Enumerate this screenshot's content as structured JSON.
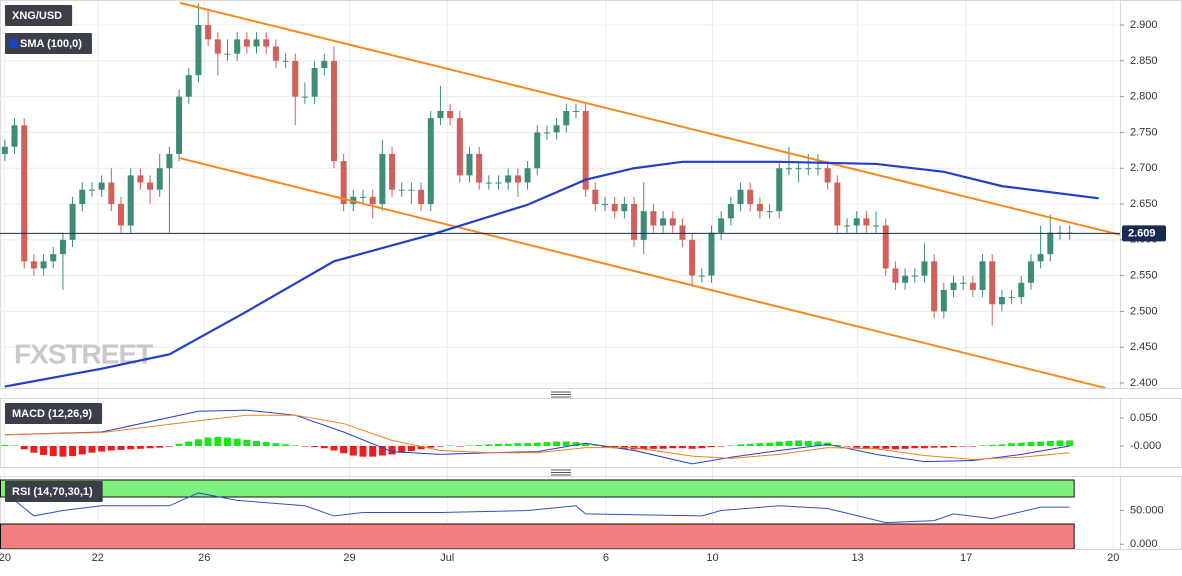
{
  "chart_data": [
    {
      "type": "candlestick",
      "title": "XNG/USD",
      "watermark": "FXSTREET",
      "up_color": "#3d8c78",
      "down_color": "#d0605a",
      "x": [
        0,
        1,
        2,
        3,
        4,
        5,
        6,
        7,
        8,
        9,
        10,
        11,
        12,
        13,
        14,
        15,
        16,
        17,
        18,
        19,
        20,
        21,
        22,
        23,
        24,
        25,
        26,
        27,
        28,
        29,
        30,
        31,
        32,
        33,
        34,
        35,
        36,
        37,
        38,
        39,
        40,
        41,
        42,
        43,
        44,
        45,
        46,
        47,
        48,
        49,
        50,
        51,
        52,
        53,
        54,
        55,
        56,
        57,
        58,
        59,
        60,
        61,
        62,
        63,
        64,
        65,
        66,
        67,
        68,
        69,
        70,
        71,
        72,
        73,
        74,
        75,
        76,
        77,
        78,
        79,
        80,
        81,
        82,
        83,
        84,
        85,
        86,
        87,
        88,
        89,
        90,
        91,
        92,
        93,
        94,
        95,
        96,
        97,
        98,
        99,
        100,
        101,
        102,
        103,
        104,
        105,
        106,
        107,
        108,
        109,
        110
      ],
      "open": [
        2.72,
        2.73,
        2.76,
        2.57,
        2.56,
        2.57,
        2.58,
        2.6,
        2.65,
        2.67,
        2.67,
        2.68,
        2.65,
        2.62,
        2.69,
        2.68,
        2.67,
        2.7,
        2.72,
        2.8,
        2.83,
        2.9,
        2.88,
        2.86,
        2.86,
        2.88,
        2.87,
        2.88,
        2.87,
        2.85,
        2.85,
        2.8,
        2.8,
        2.84,
        2.85,
        2.71,
        2.65,
        2.66,
        2.66,
        2.65,
        2.72,
        2.67,
        2.67,
        2.67,
        2.65,
        2.77,
        2.78,
        2.77,
        2.69,
        2.72,
        2.68,
        2.68,
        2.68,
        2.69,
        2.68,
        2.7,
        2.75,
        2.75,
        2.76,
        2.78,
        2.78,
        2.67,
        2.65,
        2.65,
        2.64,
        2.65,
        2.6,
        2.64,
        2.62,
        2.63,
        2.62,
        2.6,
        2.55,
        2.55,
        2.61,
        2.63,
        2.65,
        2.67,
        2.65,
        2.64,
        2.64,
        2.7,
        2.7,
        2.7,
        2.7,
        2.7,
        2.68,
        2.62,
        2.62,
        2.63,
        2.62,
        2.62,
        2.56,
        2.54,
        2.55,
        2.55,
        2.57,
        2.5,
        2.53,
        2.54,
        2.54,
        2.53,
        2.57,
        2.51,
        2.52,
        2.52,
        2.54,
        2.57,
        2.58,
        2.61,
        2.61
      ],
      "high": [
        2.74,
        2.77,
        2.77,
        2.58,
        2.58,
        2.59,
        2.61,
        2.66,
        2.68,
        2.68,
        2.69,
        2.7,
        2.66,
        2.7,
        2.7,
        2.69,
        2.72,
        2.73,
        2.81,
        2.84,
        2.93,
        2.92,
        2.89,
        2.88,
        2.89,
        2.89,
        2.89,
        2.89,
        2.88,
        2.86,
        2.86,
        2.82,
        2.85,
        2.86,
        2.87,
        2.72,
        2.67,
        2.67,
        2.67,
        2.74,
        2.73,
        2.68,
        2.68,
        2.68,
        2.78,
        2.815,
        2.79,
        2.78,
        2.73,
        2.73,
        2.69,
        2.69,
        2.7,
        2.7,
        2.71,
        2.76,
        2.76,
        2.77,
        2.79,
        2.79,
        2.79,
        2.68,
        2.66,
        2.66,
        2.66,
        2.66,
        2.68,
        2.65,
        2.64,
        2.64,
        2.63,
        2.61,
        2.56,
        2.62,
        2.64,
        2.66,
        2.68,
        2.68,
        2.66,
        2.65,
        2.71,
        2.73,
        2.71,
        2.72,
        2.72,
        2.71,
        2.69,
        2.63,
        2.64,
        2.64,
        2.64,
        2.63,
        2.57,
        2.56,
        2.56,
        2.595,
        2.58,
        2.54,
        2.55,
        2.55,
        2.55,
        2.58,
        2.58,
        2.53,
        2.53,
        2.55,
        2.58,
        2.62,
        2.635,
        2.62,
        2.62
      ],
      "low": [
        2.71,
        2.72,
        2.56,
        2.55,
        2.55,
        2.56,
        2.53,
        2.59,
        2.64,
        2.66,
        2.66,
        2.64,
        2.61,
        2.61,
        2.67,
        2.65,
        2.66,
        2.61,
        2.71,
        2.79,
        2.82,
        2.87,
        2.83,
        2.85,
        2.85,
        2.86,
        2.86,
        2.86,
        2.84,
        2.84,
        2.76,
        2.79,
        2.79,
        2.83,
        2.7,
        2.64,
        2.64,
        2.65,
        2.63,
        2.64,
        2.66,
        2.66,
        2.65,
        2.64,
        2.64,
        2.76,
        2.76,
        2.68,
        2.68,
        2.67,
        2.67,
        2.67,
        2.67,
        2.66,
        2.67,
        2.69,
        2.74,
        2.74,
        2.75,
        2.77,
        2.66,
        2.64,
        2.64,
        2.63,
        2.63,
        2.59,
        2.58,
        2.61,
        2.61,
        2.61,
        2.59,
        2.535,
        2.54,
        2.54,
        2.6,
        2.62,
        2.64,
        2.64,
        2.63,
        2.63,
        2.63,
        2.69,
        2.68,
        2.69,
        2.69,
        2.67,
        2.61,
        2.61,
        2.61,
        2.61,
        2.61,
        2.55,
        2.53,
        2.53,
        2.54,
        2.54,
        2.49,
        2.49,
        2.52,
        2.53,
        2.52,
        2.52,
        2.48,
        2.5,
        2.51,
        2.51,
        2.53,
        2.56,
        2.57,
        2.6,
        2.6
      ],
      "close": [
        2.73,
        2.76,
        2.57,
        2.56,
        2.57,
        2.58,
        2.6,
        2.65,
        2.67,
        2.67,
        2.68,
        2.65,
        2.62,
        2.69,
        2.68,
        2.67,
        2.7,
        2.72,
        2.8,
        2.83,
        2.9,
        2.88,
        2.86,
        2.86,
        2.88,
        2.87,
        2.88,
        2.87,
        2.85,
        2.85,
        2.8,
        2.8,
        2.84,
        2.85,
        2.71,
        2.65,
        2.66,
        2.66,
        2.65,
        2.72,
        2.67,
        2.67,
        2.67,
        2.65,
        2.77,
        2.78,
        2.77,
        2.69,
        2.72,
        2.68,
        2.68,
        2.68,
        2.69,
        2.68,
        2.7,
        2.75,
        2.75,
        2.76,
        2.78,
        2.78,
        2.67,
        2.65,
        2.65,
        2.64,
        2.65,
        2.6,
        2.64,
        2.62,
        2.63,
        2.62,
        2.6,
        2.55,
        2.55,
        2.61,
        2.63,
        2.65,
        2.67,
        2.65,
        2.64,
        2.64,
        2.7,
        2.7,
        2.7,
        2.7,
        2.7,
        2.68,
        2.62,
        2.62,
        2.63,
        2.62,
        2.62,
        2.56,
        2.54,
        2.55,
        2.55,
        2.57,
        2.5,
        2.53,
        2.54,
        2.54,
        2.53,
        2.57,
        2.51,
        2.52,
        2.52,
        2.54,
        2.57,
        2.58,
        2.61,
        2.61,
        2.61
      ],
      "series": [
        {
          "name": "SMA (100,0)",
          "color": "#1f3fcc",
          "x": [
            0,
            10,
            17,
            25,
            34,
            44,
            54,
            60,
            65,
            70,
            80,
            90,
            97,
            103,
            113
          ],
          "values": [
            2.395,
            2.42,
            2.44,
            2.5,
            2.57,
            2.607,
            2.649,
            2.684,
            2.7,
            2.709,
            2.709,
            2.706,
            2.695,
            2.675,
            2.658
          ]
        }
      ],
      "trendlines": [
        {
          "color": "#f5891f",
          "x": [
            18.1,
            115.2
          ],
          "values": [
            2.931,
            2.607
          ]
        },
        {
          "color": "#f5891f",
          "x": [
            18.1,
            113.7
          ],
          "values": [
            2.714,
            2.393
          ]
        }
      ],
      "last_price": 2.609,
      "last_price_color": "#1a2a50",
      "xlim": [
        -0.5,
        115.2
      ],
      "ylim": [
        2.393,
        2.935
      ],
      "yticks": [
        {
          "value": 2.9,
          "label": "2.900"
        },
        {
          "value": 2.85,
          "label": "2.850"
        },
        {
          "value": 2.8,
          "label": "2.800"
        },
        {
          "value": 2.75,
          "label": "2.750"
        },
        {
          "value": 2.7,
          "label": "2.700"
        },
        {
          "value": 2.65,
          "label": "2.650"
        },
        {
          "value": 2.6,
          "label": "2.600"
        },
        {
          "value": 2.55,
          "label": "2.550"
        },
        {
          "value": 2.5,
          "label": "2.500"
        },
        {
          "value": 2.45,
          "label": "2.450"
        },
        {
          "value": 2.4,
          "label": "2.400"
        }
      ],
      "grid": true
    },
    {
      "type": "macd",
      "title": "MACD (12,26,9)",
      "positive_color": "#19e619",
      "negative_color": "#ee1c1c",
      "x": [
        0,
        1,
        2,
        3,
        4,
        5,
        6,
        7,
        8,
        9,
        10,
        11,
        12,
        13,
        14,
        15,
        16,
        17,
        18,
        19,
        20,
        21,
        22,
        23,
        24,
        25,
        26,
        27,
        28,
        29,
        30,
        31,
        32,
        33,
        34,
        35,
        36,
        37,
        38,
        39,
        40,
        41,
        42,
        43,
        44,
        45,
        46,
        47,
        48,
        49,
        50,
        51,
        52,
        53,
        54,
        55,
        56,
        57,
        58,
        59,
        60,
        61,
        62,
        63,
        64,
        65,
        66,
        67,
        68,
        69,
        70,
        71,
        72,
        73,
        74,
        75,
        76,
        77,
        78,
        79,
        80,
        81,
        82,
        83,
        84,
        85,
        86,
        87,
        88,
        89,
        90,
        91,
        92,
        93,
        94,
        95,
        96,
        97,
        98,
        99,
        100,
        101,
        102,
        103,
        104,
        105,
        106,
        107,
        108,
        109,
        110
      ],
      "histogram": [
        0.002,
        0.001,
        -0.006,
        -0.012,
        -0.016,
        -0.018,
        -0.019,
        -0.018,
        -0.015,
        -0.012,
        -0.01,
        -0.008,
        -0.007,
        -0.006,
        -0.005,
        -0.004,
        -0.003,
        -0.001,
        0.004,
        0.008,
        0.012,
        0.015,
        0.016,
        0.015,
        0.013,
        0.011,
        0.009,
        0.007,
        0.005,
        0.003,
        0.001,
        -0.001,
        -0.002,
        -0.004,
        -0.008,
        -0.013,
        -0.017,
        -0.019,
        -0.019,
        -0.017,
        -0.015,
        -0.012,
        -0.009,
        -0.006,
        -0.003,
        -0.001,
        0.001,
        -0.001,
        0.001,
        0.002,
        0.003,
        0.004,
        0.004,
        0.005,
        0.005,
        0.006,
        0.007,
        0.008,
        0.008,
        0.007,
        0.004,
        0.001,
        -0.002,
        -0.004,
        -0.005,
        -0.006,
        -0.006,
        -0.005,
        -0.005,
        -0.004,
        -0.004,
        -0.005,
        -0.004,
        -0.002,
        -0.001,
        0.001,
        0.003,
        0.004,
        0.005,
        0.006,
        0.008,
        0.009,
        0.01,
        0.009,
        0.008,
        0.006,
        0.002,
        -0.001,
        -0.003,
        -0.004,
        -0.005,
        -0.005,
        -0.006,
        -0.005,
        -0.004,
        -0.004,
        -0.003,
        -0.003,
        -0.002,
        -0.001,
        -0.001,
        0.001,
        0.002,
        0.003,
        0.005,
        0.006,
        0.007,
        0.008,
        0.009,
        0.01,
        0.01
      ],
      "series": [
        {
          "color": "#2040d0",
          "x": [
            0,
            10,
            20,
            25,
            30,
            35,
            40,
            45,
            50,
            55,
            60,
            65,
            71,
            75,
            80,
            85,
            90,
            95,
            100,
            105,
            110
          ],
          "values": [
            0.02,
            0.025,
            0.062,
            0.064,
            0.055,
            0.025,
            -0.01,
            -0.015,
            -0.012,
            -0.01,
            0.005,
            -0.008,
            -0.032,
            -0.02,
            -0.008,
            0.003,
            -0.015,
            -0.028,
            -0.026,
            -0.015,
            0.0
          ]
        },
        {
          "color": "#f08020",
          "x": [
            0,
            10,
            20,
            25,
            30,
            35,
            40,
            45,
            50,
            55,
            60,
            65,
            71,
            75,
            80,
            85,
            90,
            95,
            100,
            105,
            110
          ],
          "values": [
            0.02,
            0.024,
            0.045,
            0.055,
            0.055,
            0.04,
            0.01,
            -0.008,
            -0.012,
            -0.012,
            -0.003,
            -0.003,
            -0.018,
            -0.022,
            -0.015,
            -0.003,
            -0.005,
            -0.017,
            -0.024,
            -0.02,
            -0.012
          ]
        }
      ],
      "xlim": [
        -0.5,
        115.2
      ],
      "ylim": [
        -0.0375,
        0.0857
      ],
      "yticks": [
        {
          "value": 0.05,
          "label": "0.050"
        },
        {
          "value": 0,
          "label": "-0.000"
        }
      ]
    },
    {
      "type": "rsi",
      "title": "RSI (14,70,30,1)",
      "overbought": 70,
      "oversold": 30,
      "overbought_color": "#7ef07e",
      "oversold_color": "#f47f7f",
      "series": [
        {
          "color": "#3050c8",
          "x": [
            0,
            3,
            6,
            10,
            17,
            20,
            24,
            31,
            34,
            37,
            45,
            54,
            59,
            60,
            72,
            74,
            80,
            85,
            91,
            96,
            98,
            102,
            107,
            110
          ],
          "values": [
            77,
            42,
            50,
            57,
            57,
            76,
            65,
            57,
            42,
            47,
            47,
            50,
            57,
            45,
            42,
            50,
            57,
            53,
            32,
            35,
            45,
            38,
            55,
            55
          ]
        }
      ],
      "xlim": [
        -0.5,
        115.2
      ],
      "ylim": [
        -7,
        101.1
      ],
      "yticks": [
        {
          "value": 50,
          "label": "50.000"
        },
        {
          "value": 0,
          "label": "0.000"
        }
      ],
      "xticks": [
        {
          "value": 0,
          "label": "20"
        },
        {
          "value": 9.6,
          "label": "22"
        },
        {
          "value": 20.6,
          "label": "26"
        },
        {
          "value": 35.6,
          "label": "29"
        },
        {
          "value": 45.7,
          "label": "Jul"
        },
        {
          "value": 62.1,
          "label": "6"
        },
        {
          "value": 73.1,
          "label": "10"
        },
        {
          "value": 88.1,
          "label": "13"
        },
        {
          "value": 99.3,
          "label": "17"
        },
        {
          "value": 114.5,
          "label": "20"
        }
      ]
    }
  ]
}
